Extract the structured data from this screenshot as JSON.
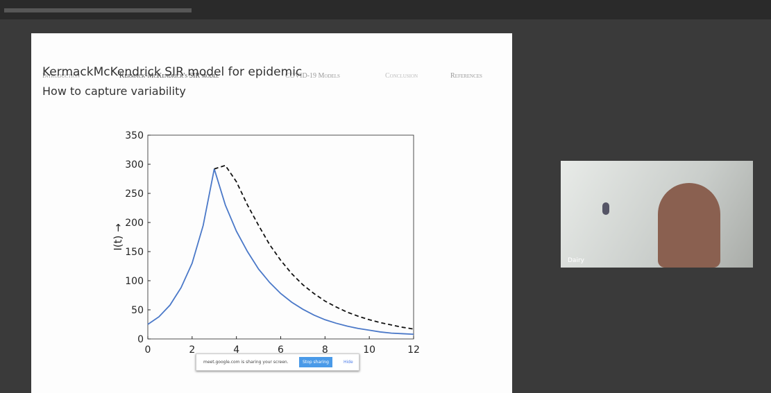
{
  "nav": [
    "Introduction",
    "Kermack-McKendrick's SIR model",
    "COVID-19 Models",
    "Conclusion",
    "References"
  ],
  "slide": {
    "title": "KermackMcKendrick SIR model for epidemic",
    "subtitle": "How to capture variability"
  },
  "chart_data": {
    "type": "line",
    "y_label": "I(t) →",
    "x": [
      0,
      0.5,
      1,
      1.5,
      2,
      2.5,
      3,
      3.5,
      4,
      4.5,
      5,
      5.5,
      6,
      6.5,
      7,
      7.5,
      8,
      8.5,
      9,
      9.5,
      10,
      10.5,
      11,
      11.5,
      12
    ],
    "series": [
      {
        "color": "#4a78c8",
        "style": "solid",
        "values": [
          25,
          38,
          58,
          88,
          130,
          195,
          292,
          230,
          185,
          150,
          120,
          97,
          78,
          63,
          51,
          41,
          33,
          27,
          22,
          18,
          15,
          12,
          10,
          9,
          8
        ]
      },
      {
        "color": "#111111",
        "style": "dashed",
        "values": [
          null,
          null,
          null,
          null,
          null,
          null,
          292,
          298,
          270,
          230,
          195,
          162,
          135,
          112,
          93,
          78,
          65,
          55,
          46,
          39,
          33,
          28,
          24,
          20,
          17
        ]
      }
    ],
    "xlim": [
      0,
      12
    ],
    "xticks": [
      0,
      2,
      4,
      6,
      8,
      10,
      12
    ],
    "ylim": [
      0,
      350
    ],
    "yticks": [
      0,
      50,
      100,
      150,
      200,
      250,
      300,
      350
    ]
  },
  "share_bar": {
    "message": "meet.google.com is sharing your screen.",
    "stop": "Stop sharing",
    "hide": "Hide"
  },
  "participant": {
    "name": "Dairy"
  }
}
